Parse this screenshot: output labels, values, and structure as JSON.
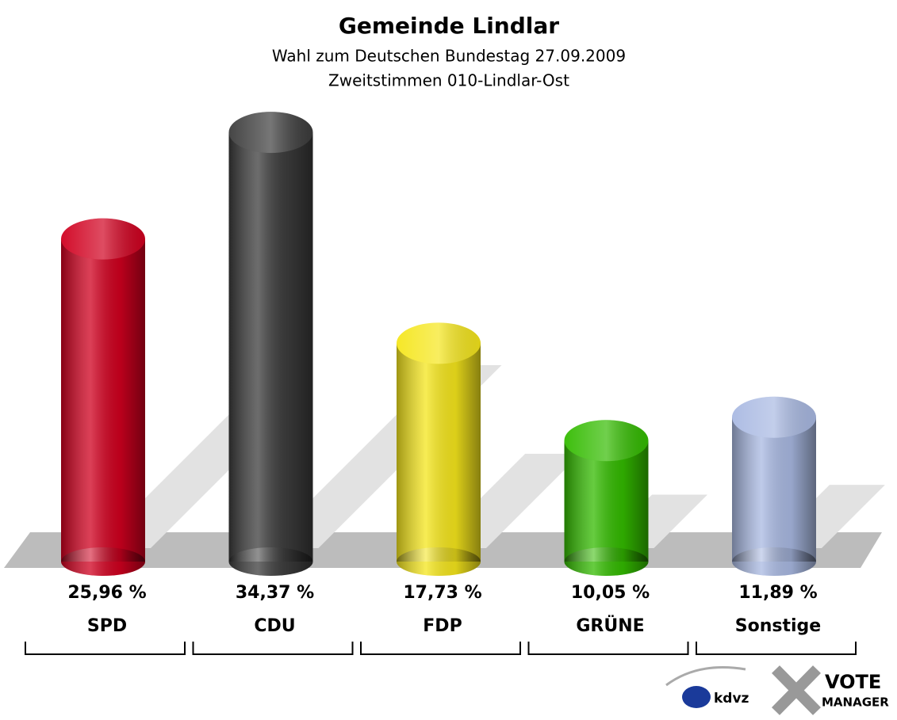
{
  "chart_data": {
    "type": "bar",
    "title": "Gemeinde Lindlar",
    "subtitle": [
      "Wahl zum Deutschen Bundestag 27.09.2009",
      "Zweitstimmen 010-Lindlar-Ost"
    ],
    "categories": [
      "SPD",
      "CDU",
      "FDP",
      "GRÜNE",
      "Sonstige"
    ],
    "values": [
      25.96,
      34.37,
      17.73,
      10.05,
      11.89
    ],
    "value_labels": [
      "25,96 %",
      "34,37 %",
      "17,73 %",
      "10,05 %",
      "11,89 %"
    ],
    "colors": [
      "#d0001f",
      "#3c3c3c",
      "#f5e61c",
      "#33bb00",
      "#a9b9e2"
    ]
  },
  "branding": {
    "kdvz": "kdvz",
    "vote": "VOTE",
    "manager": "MANAGER"
  }
}
